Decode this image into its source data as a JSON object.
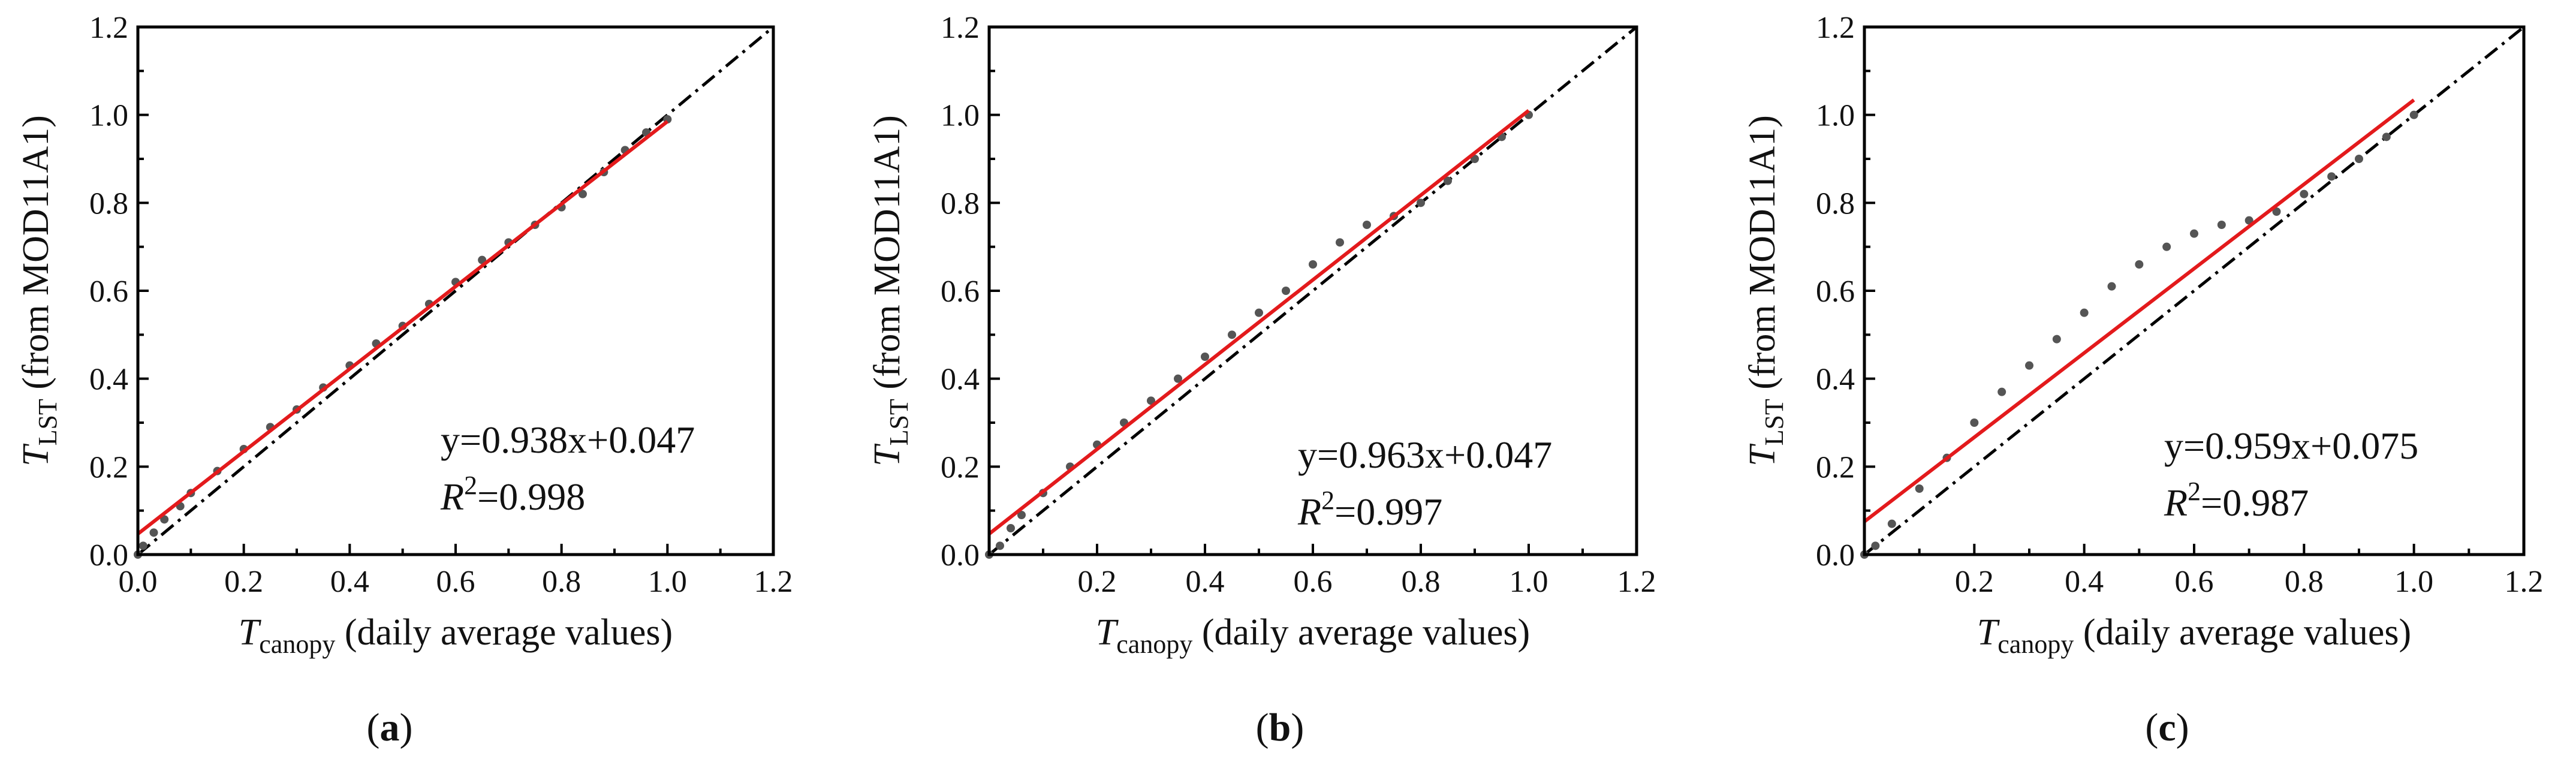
{
  "chart_data": [
    {
      "type": "scatter",
      "panel_label": "a",
      "xlabel": {
        "symbol": "T",
        "sub": "canopy",
        "text": " (daily average values)"
      },
      "ylabel": {
        "symbol": "T",
        "sub": "LST",
        "text": " (from MOD11A1)"
      },
      "xlim": [
        0,
        1.2
      ],
      "ylim": [
        0,
        1.2
      ],
      "xticks": [
        "0.0",
        "0.2",
        "0.4",
        "0.6",
        "0.8",
        "1.0",
        "1.2"
      ],
      "yticks": [
        "0.0",
        "0.2",
        "0.4",
        "0.6",
        "0.8",
        "1.0",
        "1.2"
      ],
      "fit": {
        "slope": 0.938,
        "intercept": 0.047,
        "x_range": [
          0,
          1.0
        ],
        "color": "#e31a1c"
      },
      "one_to_one": {
        "x_range": [
          0,
          1.2
        ],
        "style": "dash-dot",
        "color": "#000000"
      },
      "equation": "y=0.938x+0.047",
      "r2": {
        "symbol": "R",
        "sup": "2",
        "text": "=0.998"
      },
      "points": [
        [
          0.0,
          0.0
        ],
        [
          0.01,
          0.02
        ],
        [
          0.03,
          0.05
        ],
        [
          0.05,
          0.08
        ],
        [
          0.08,
          0.11
        ],
        [
          0.1,
          0.14
        ],
        [
          0.15,
          0.19
        ],
        [
          0.2,
          0.24
        ],
        [
          0.25,
          0.29
        ],
        [
          0.3,
          0.33
        ],
        [
          0.35,
          0.38
        ],
        [
          0.4,
          0.43
        ],
        [
          0.45,
          0.48
        ],
        [
          0.5,
          0.52
        ],
        [
          0.55,
          0.57
        ],
        [
          0.6,
          0.62
        ],
        [
          0.65,
          0.67
        ],
        [
          0.7,
          0.71
        ],
        [
          0.75,
          0.75
        ],
        [
          0.8,
          0.79
        ],
        [
          0.84,
          0.82
        ],
        [
          0.88,
          0.87
        ],
        [
          0.92,
          0.92
        ],
        [
          0.96,
          0.96
        ],
        [
          1.0,
          0.99
        ]
      ]
    },
    {
      "type": "scatter",
      "panel_label": "b",
      "xlabel": {
        "symbol": "T",
        "sub": "canopy",
        "text": " (daily average values)"
      },
      "ylabel": {
        "symbol": "T",
        "sub": "LST",
        "text": " (from MOD11A1)"
      },
      "xlim": [
        0,
        1.2
      ],
      "ylim": [
        0,
        1.2
      ],
      "xticks": [
        "",
        "0.2",
        "0.4",
        "0.6",
        "0.8",
        "1.0",
        "1.2"
      ],
      "yticks": [
        "0.0",
        "0.2",
        "0.4",
        "0.6",
        "0.8",
        "1.0",
        "1.2"
      ],
      "fit": {
        "slope": 0.963,
        "intercept": 0.047,
        "x_range": [
          0,
          1.0
        ],
        "color": "#e31a1c"
      },
      "one_to_one": {
        "x_range": [
          0,
          1.2
        ],
        "style": "dash-dot",
        "color": "#000000"
      },
      "equation": "y=0.963x+0.047",
      "r2": {
        "symbol": "R",
        "sup": "2",
        "text": "=0.997"
      },
      "points": [
        [
          0.0,
          0.0
        ],
        [
          0.02,
          0.02
        ],
        [
          0.04,
          0.06
        ],
        [
          0.06,
          0.09
        ],
        [
          0.1,
          0.14
        ],
        [
          0.15,
          0.2
        ],
        [
          0.2,
          0.25
        ],
        [
          0.25,
          0.3
        ],
        [
          0.3,
          0.35
        ],
        [
          0.35,
          0.4
        ],
        [
          0.4,
          0.45
        ],
        [
          0.45,
          0.5
        ],
        [
          0.5,
          0.55
        ],
        [
          0.55,
          0.6
        ],
        [
          0.6,
          0.66
        ],
        [
          0.65,
          0.71
        ],
        [
          0.7,
          0.75
        ],
        [
          0.75,
          0.77
        ],
        [
          0.8,
          0.8
        ],
        [
          0.85,
          0.85
        ],
        [
          0.9,
          0.9
        ],
        [
          0.95,
          0.95
        ],
        [
          1.0,
          1.0
        ]
      ]
    },
    {
      "type": "scatter",
      "panel_label": "c",
      "xlabel": {
        "symbol": "T",
        "sub": "canopy",
        "text": " (daily average values)"
      },
      "ylabel": {
        "symbol": "T",
        "sub": "LST",
        "text": " (from MOD11A1)"
      },
      "xlim": [
        0,
        1.2
      ],
      "ylim": [
        0,
        1.2
      ],
      "xticks": [
        "",
        "0.2",
        "0.4",
        "0.6",
        "0.8",
        "1.0",
        "1.2"
      ],
      "yticks": [
        "0.0",
        "0.2",
        "0.4",
        "0.6",
        "0.8",
        "1.0",
        "1.2"
      ],
      "fit": {
        "slope": 0.959,
        "intercept": 0.075,
        "x_range": [
          0,
          1.0
        ],
        "color": "#e31a1c"
      },
      "one_to_one": {
        "x_range": [
          0,
          1.2
        ],
        "style": "dash-dot",
        "color": "#000000"
      },
      "equation": "y=0.959x+0.075",
      "r2": {
        "symbol": "R",
        "sup": "2",
        "text": "=0.987"
      },
      "points": [
        [
          0.0,
          0.0
        ],
        [
          0.02,
          0.02
        ],
        [
          0.05,
          0.07
        ],
        [
          0.1,
          0.15
        ],
        [
          0.15,
          0.22
        ],
        [
          0.2,
          0.3
        ],
        [
          0.25,
          0.37
        ],
        [
          0.3,
          0.43
        ],
        [
          0.35,
          0.49
        ],
        [
          0.4,
          0.55
        ],
        [
          0.45,
          0.61
        ],
        [
          0.5,
          0.66
        ],
        [
          0.55,
          0.7
        ],
        [
          0.6,
          0.73
        ],
        [
          0.65,
          0.75
        ],
        [
          0.7,
          0.76
        ],
        [
          0.75,
          0.78
        ],
        [
          0.8,
          0.82
        ],
        [
          0.85,
          0.86
        ],
        [
          0.9,
          0.9
        ],
        [
          0.95,
          0.95
        ],
        [
          1.0,
          1.0
        ]
      ]
    }
  ]
}
